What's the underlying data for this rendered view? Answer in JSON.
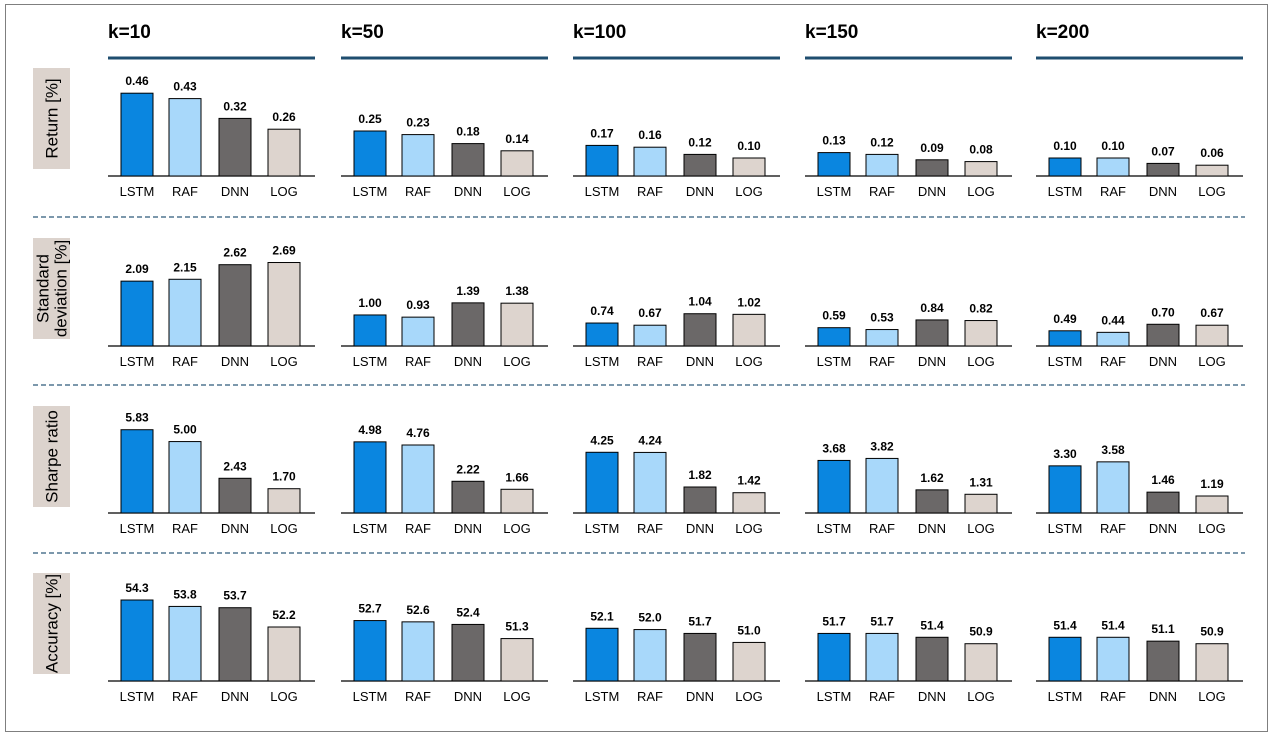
{
  "colors": {
    "LSTM": "#0a86e0",
    "RAF": "#a8d8fa",
    "DNN": "#6b6868",
    "LOG": "#ddd4ce",
    "header_rule": "#1f4e6f",
    "row_label_bg": "#dcd3cd",
    "separator": "#2e5a7a"
  },
  "chart_data": {
    "type": "bar",
    "layout": "small-multiples grid (rows = metrics, columns = k)",
    "columns": [
      "k=10",
      "k=50",
      "k=100",
      "k=150",
      "k=200"
    ],
    "categories": [
      "LSTM",
      "RAF",
      "DNN",
      "LOG"
    ],
    "rows": [
      {
        "label": [
          "Return [%]"
        ],
        "ylim": [
          0,
          0.5
        ],
        "values": [
          [
            0.46,
            0.43,
            0.32,
            0.26
          ],
          [
            0.25,
            0.23,
            0.18,
            0.14
          ],
          [
            0.17,
            0.16,
            0.12,
            0.1
          ],
          [
            0.13,
            0.12,
            0.09,
            0.08
          ],
          [
            0.1,
            0.1,
            0.07,
            0.06
          ]
        ],
        "labels": [
          [
            "0.46",
            "0.43",
            "0.32",
            "0.26"
          ],
          [
            "0.25",
            "0.23",
            "0.18",
            "0.14"
          ],
          [
            "0.17",
            "0.16",
            "0.12",
            "0.10"
          ],
          [
            "0.13",
            "0.12",
            "0.09",
            "0.08"
          ],
          [
            "0.10",
            "0.10",
            "0.07",
            "0.06"
          ]
        ]
      },
      {
        "label": [
          "Standard",
          "deviation [%]"
        ],
        "ylim": [
          0,
          2.9
        ],
        "values": [
          [
            2.09,
            2.15,
            2.62,
            2.69
          ],
          [
            1.0,
            0.93,
            1.39,
            1.38
          ],
          [
            0.74,
            0.67,
            1.04,
            1.02
          ],
          [
            0.59,
            0.53,
            0.84,
            0.82
          ],
          [
            0.49,
            0.44,
            0.7,
            0.67
          ]
        ],
        "labels": [
          [
            "2.09",
            "2.15",
            "2.62",
            "2.69"
          ],
          [
            "1.00",
            "0.93",
            "1.39",
            "1.38"
          ],
          [
            "0.74",
            "0.67",
            "1.04",
            "1.02"
          ],
          [
            "0.59",
            "0.53",
            "0.84",
            "0.82"
          ],
          [
            "0.49",
            "0.44",
            "0.70",
            "0.67"
          ]
        ]
      },
      {
        "label": [
          "Sharpe ratio"
        ],
        "ylim": [
          0,
          6.3
        ],
        "values": [
          [
            5.83,
            5.0,
            2.43,
            1.7
          ],
          [
            4.98,
            4.76,
            2.22,
            1.66
          ],
          [
            4.25,
            4.24,
            1.82,
            1.42
          ],
          [
            3.68,
            3.82,
            1.62,
            1.31
          ],
          [
            3.3,
            3.58,
            1.46,
            1.19
          ]
        ],
        "labels": [
          [
            "5.83",
            "5.00",
            "2.43",
            "1.70"
          ],
          [
            "4.98",
            "4.76",
            "2.22",
            "1.66"
          ],
          [
            "4.25",
            "4.24",
            "1.82",
            "1.42"
          ],
          [
            "3.68",
            "3.82",
            "1.62",
            "1.31"
          ],
          [
            "3.30",
            "3.58",
            "1.46",
            "1.19"
          ]
        ]
      },
      {
        "label": [
          "Accuracy [%]"
        ],
        "ylim": [
          48,
          55
        ],
        "values": [
          [
            54.3,
            53.8,
            53.7,
            52.2
          ],
          [
            52.7,
            52.6,
            52.4,
            51.3
          ],
          [
            52.1,
            52.0,
            51.7,
            51.0
          ],
          [
            51.7,
            51.7,
            51.4,
            50.9
          ],
          [
            51.4,
            51.4,
            51.1,
            50.9
          ]
        ],
        "labels": [
          [
            "54.3",
            "53.8",
            "53.7",
            "52.2"
          ],
          [
            "52.7",
            "52.6",
            "52.4",
            "51.3"
          ],
          [
            "52.1",
            "52.0",
            "51.7",
            "51.0"
          ],
          [
            "51.7",
            "51.7",
            "51.4",
            "50.9"
          ],
          [
            "51.4",
            "51.4",
            "51.1",
            "50.9"
          ]
        ]
      }
    ]
  }
}
